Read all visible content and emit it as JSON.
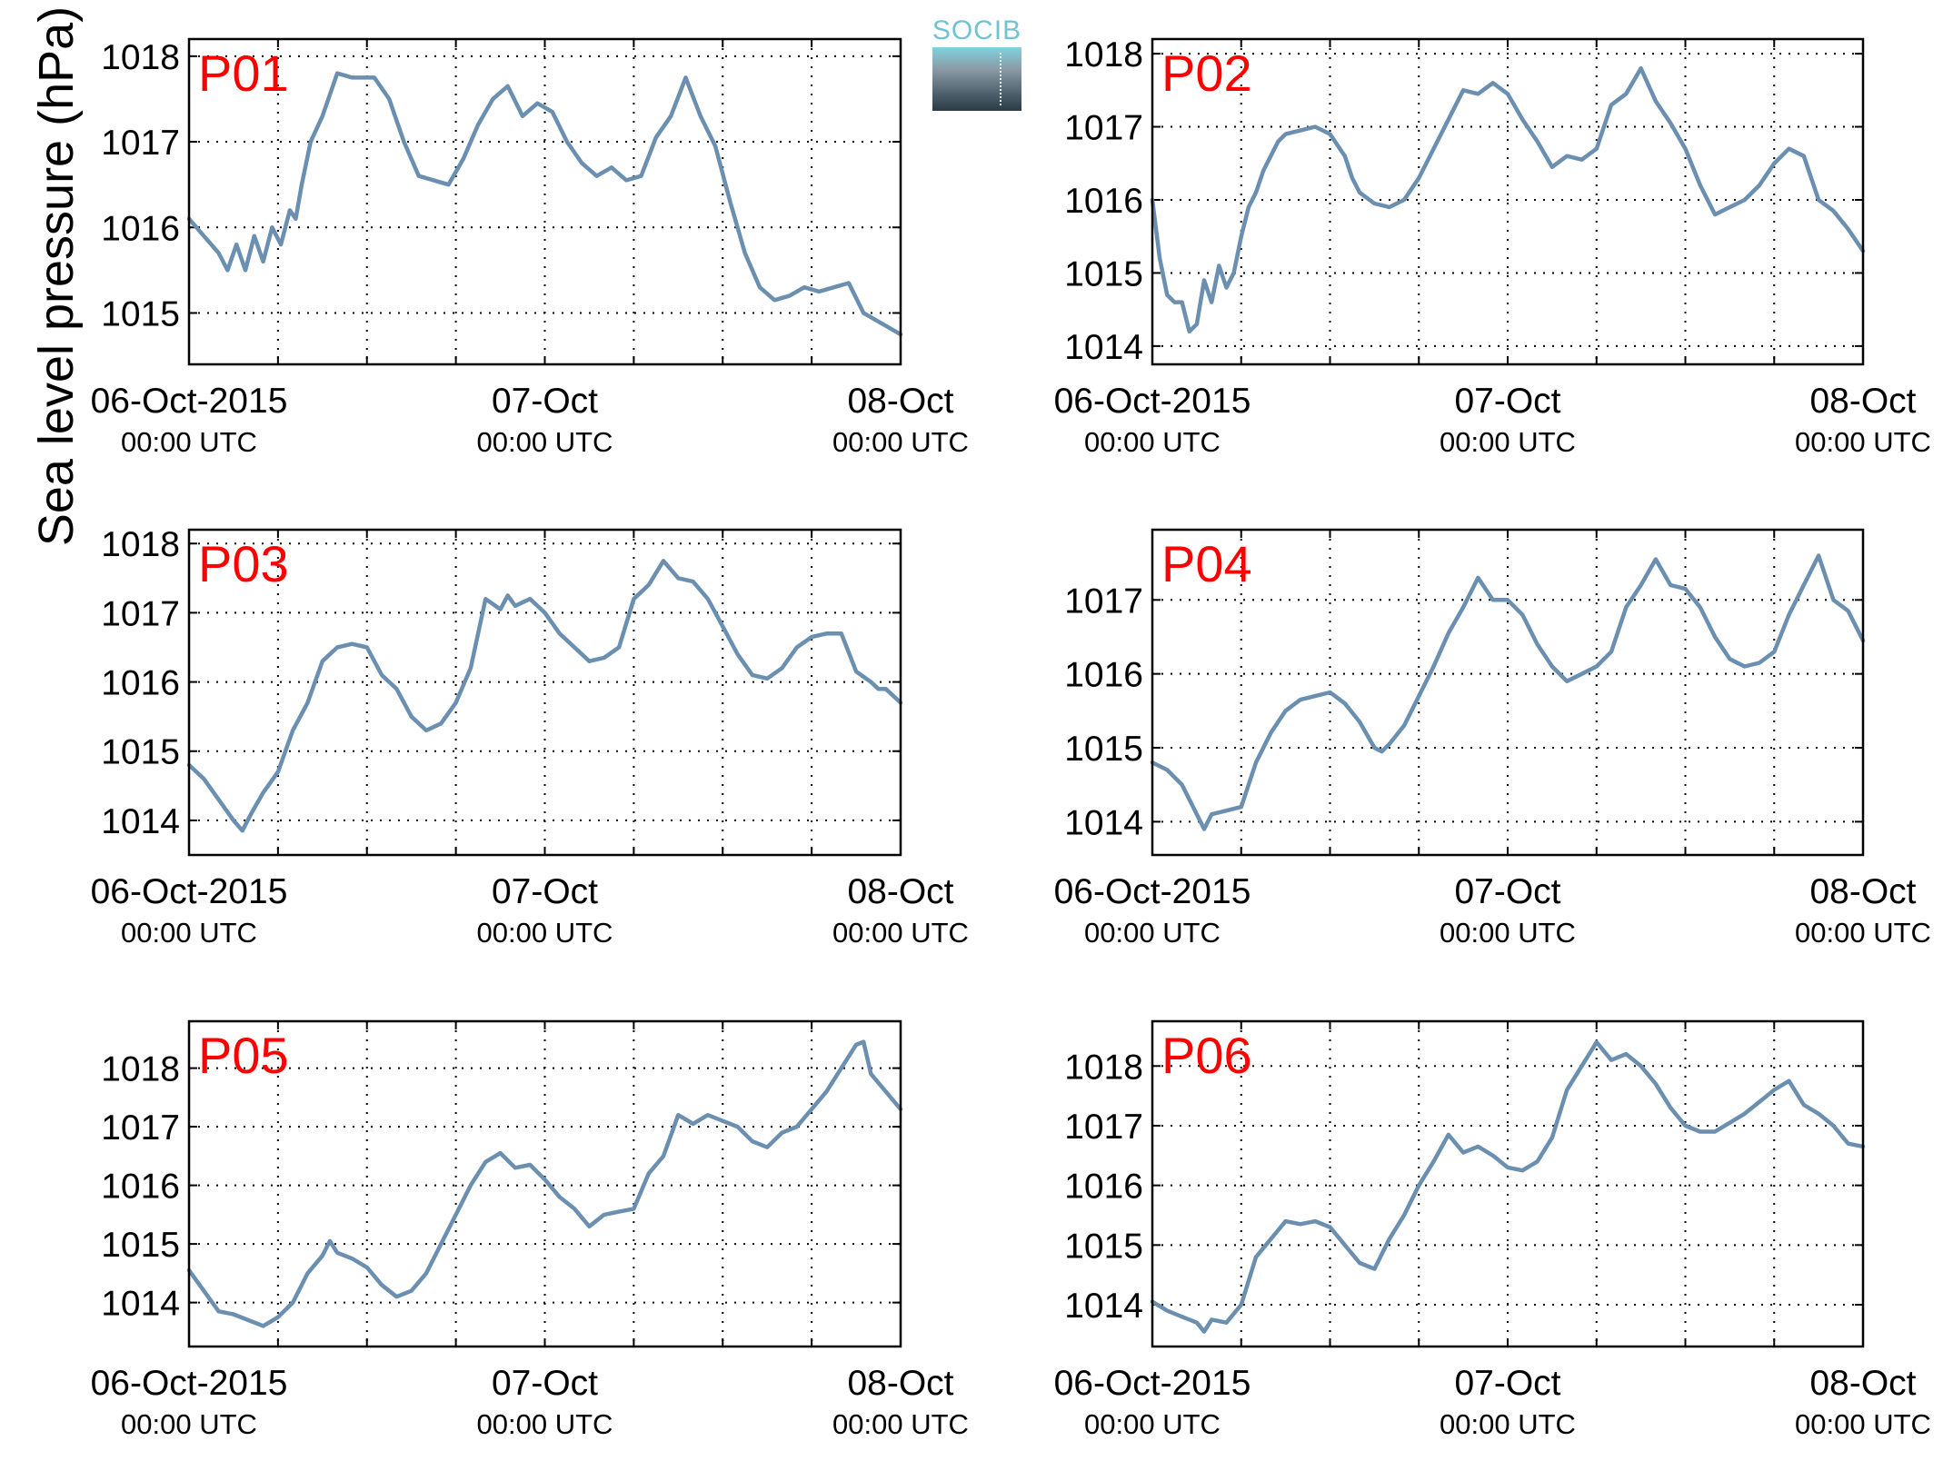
{
  "figure": {
    "ylabel": "Sea level pressure (hPa)",
    "logo_text": "SOCIB",
    "line_color": "#6a8fb0",
    "panel_label_color": "#ff0000"
  },
  "chart_data": [
    {
      "type": "line",
      "label": "P01",
      "ylim": [
        1014.4,
        1018.2
      ],
      "yticks": [
        1015,
        1016,
        1017,
        1018
      ],
      "xlim": [
        0,
        48
      ],
      "grid": true,
      "xticklabels": [
        {
          "date": "06-Oct-2015",
          "time": "00:00 UTC"
        },
        {
          "date": "07-Oct",
          "time": "00:00 UTC"
        },
        {
          "date": "08-Oct",
          "time": "00:00 UTC"
        }
      ],
      "series": [
        {
          "x": [
            0,
            1,
            2,
            2.6,
            3.2,
            3.8,
            4.4,
            5,
            5.6,
            6.2,
            6.8,
            7.2,
            7.6,
            8.2,
            9,
            10,
            11,
            12.5,
            13.5,
            14.5,
            15.5,
            16.5,
            17.5,
            18.5,
            19.5,
            20.5,
            21.5,
            22.5,
            23.5,
            24.5,
            25.5,
            26.5,
            27.5,
            28.5,
            29.5,
            30.5,
            31.5,
            32.5,
            33.5,
            34.5,
            35.5,
            36.5,
            37.5,
            38.5,
            39.5,
            40.5,
            41.5,
            42.5,
            43.5,
            44.5,
            45.5,
            46,
            46.5,
            47,
            47.5,
            48
          ],
          "y": [
            1016.1,
            1015.9,
            1015.7,
            1015.5,
            1015.8,
            1015.5,
            1015.9,
            1015.6,
            1016.0,
            1015.8,
            1016.2,
            1016.1,
            1016.5,
            1017.0,
            1017.3,
            1017.8,
            1017.75,
            1017.75,
            1017.5,
            1017.0,
            1016.6,
            1016.55,
            1016.5,
            1016.8,
            1017.2,
            1017.5,
            1017.65,
            1017.3,
            1017.45,
            1017.35,
            1017.0,
            1016.75,
            1016.6,
            1016.7,
            1016.55,
            1016.6,
            1017.05,
            1017.3,
            1017.75,
            1017.3,
            1016.95,
            1016.3,
            1015.7,
            1015.3,
            1015.15,
            1015.2,
            1015.3,
            1015.25,
            1015.3,
            1015.35,
            1015.0,
            1014.95,
            1014.9,
            1014.85,
            1014.8,
            1014.75
          ]
        }
      ]
    },
    {
      "type": "line",
      "label": "P02",
      "ylim": [
        1013.75,
        1018.2
      ],
      "yticks": [
        1014,
        1015,
        1016,
        1017,
        1018
      ],
      "xlim": [
        0,
        48
      ],
      "grid": true,
      "xticklabels": [
        {
          "date": "06-Oct-2015",
          "time": "00:00 UTC"
        },
        {
          "date": "07-Oct",
          "time": "00:00 UTC"
        },
        {
          "date": "08-Oct",
          "time": "00:00 UTC"
        }
      ],
      "series": [
        {
          "x": [
            0,
            0.5,
            1,
            1.5,
            2,
            2.5,
            3,
            3.5,
            4,
            4.5,
            5,
            5.5,
            6,
            6.5,
            7,
            7.5,
            8,
            8.5,
            9,
            10,
            11,
            12,
            13,
            13.5,
            14,
            15,
            16,
            17,
            18,
            19,
            20,
            21,
            22,
            23,
            24,
            25,
            26,
            27,
            28,
            29,
            30,
            31,
            32,
            33,
            34,
            35,
            36,
            37,
            38,
            39,
            40,
            41,
            42,
            43,
            44,
            45,
            46,
            47,
            48
          ],
          "y": [
            1016.0,
            1015.2,
            1014.7,
            1014.6,
            1014.6,
            1014.2,
            1014.3,
            1014.9,
            1014.6,
            1015.1,
            1014.8,
            1015.0,
            1015.5,
            1015.9,
            1016.1,
            1016.4,
            1016.6,
            1016.8,
            1016.9,
            1016.95,
            1017.0,
            1016.9,
            1016.6,
            1016.3,
            1016.1,
            1015.95,
            1015.9,
            1016.0,
            1016.3,
            1016.7,
            1017.1,
            1017.5,
            1017.45,
            1017.6,
            1017.45,
            1017.1,
            1016.8,
            1016.45,
            1016.6,
            1016.55,
            1016.7,
            1017.3,
            1017.45,
            1017.8,
            1017.35,
            1017.05,
            1016.7,
            1016.2,
            1015.8,
            1015.9,
            1016.0,
            1016.2,
            1016.5,
            1016.7,
            1016.6,
            1016.0,
            1015.85,
            1015.6,
            1015.3
          ]
        }
      ]
    },
    {
      "type": "line",
      "label": "P03",
      "ylim": [
        1013.5,
        1018.2
      ],
      "yticks": [
        1014,
        1015,
        1016,
        1017,
        1018
      ],
      "xlim": [
        0,
        48
      ],
      "grid": true,
      "xticklabels": [
        {
          "date": "06-Oct-2015",
          "time": "00:00 UTC"
        },
        {
          "date": "07-Oct",
          "time": "00:00 UTC"
        },
        {
          "date": "08-Oct",
          "time": "00:00 UTC"
        }
      ],
      "series": [
        {
          "x": [
            0,
            1,
            2,
            3,
            3.6,
            4.2,
            5,
            6,
            7,
            8,
            9,
            10,
            11,
            12,
            13,
            14,
            15,
            16,
            17,
            18,
            19,
            20,
            21,
            21.5,
            22,
            23,
            24,
            25,
            26,
            27,
            28,
            29,
            30,
            31,
            32,
            33,
            34,
            35,
            36,
            37,
            38,
            39,
            40,
            41,
            42,
            43,
            44,
            45,
            46,
            46.5,
            47,
            48
          ],
          "y": [
            1014.8,
            1014.6,
            1014.3,
            1014.0,
            1013.85,
            1014.1,
            1014.4,
            1014.7,
            1015.3,
            1015.7,
            1016.3,
            1016.5,
            1016.55,
            1016.5,
            1016.1,
            1015.9,
            1015.5,
            1015.3,
            1015.4,
            1015.7,
            1016.2,
            1017.2,
            1017.05,
            1017.25,
            1017.1,
            1017.2,
            1017.0,
            1016.7,
            1016.5,
            1016.3,
            1016.35,
            1016.5,
            1017.2,
            1017.4,
            1017.75,
            1017.5,
            1017.45,
            1017.2,
            1016.8,
            1016.4,
            1016.1,
            1016.05,
            1016.2,
            1016.5,
            1016.65,
            1016.7,
            1016.7,
            1016.15,
            1016.0,
            1015.9,
            1015.9,
            1015.7
          ]
        }
      ]
    },
    {
      "type": "line",
      "label": "P04",
      "ylim": [
        1013.55,
        1017.95
      ],
      "yticks": [
        1014,
        1015,
        1016,
        1017
      ],
      "xlim": [
        0,
        48
      ],
      "grid": true,
      "xticklabels": [
        {
          "date": "06-Oct-2015",
          "time": "00:00 UTC"
        },
        {
          "date": "07-Oct",
          "time": "00:00 UTC"
        },
        {
          "date": "08-Oct",
          "time": "00:00 UTC"
        }
      ],
      "series": [
        {
          "x": [
            0,
            1,
            2,
            3,
            3.5,
            4,
            5,
            6,
            7,
            8,
            9,
            10,
            11,
            12,
            13,
            14,
            15,
            15.5,
            16,
            17,
            18,
            19,
            20,
            21,
            22,
            23,
            24,
            25,
            26,
            27,
            28,
            29,
            30,
            31,
            32,
            33,
            34,
            35,
            36,
            37,
            38,
            39,
            40,
            41,
            42,
            43,
            44,
            45,
            46,
            47,
            48
          ],
          "y": [
            1014.8,
            1014.7,
            1014.5,
            1014.1,
            1013.9,
            1014.1,
            1014.15,
            1014.2,
            1014.8,
            1015.2,
            1015.5,
            1015.65,
            1015.7,
            1015.75,
            1015.6,
            1015.35,
            1015.0,
            1014.95,
            1015.05,
            1015.3,
            1015.7,
            1016.1,
            1016.55,
            1016.9,
            1017.3,
            1017.0,
            1017.0,
            1016.8,
            1016.4,
            1016.1,
            1015.9,
            1016.0,
            1016.1,
            1016.3,
            1016.9,
            1017.2,
            1017.55,
            1017.2,
            1017.15,
            1016.9,
            1016.5,
            1016.2,
            1016.1,
            1016.15,
            1016.3,
            1016.8,
            1017.2,
            1017.6,
            1017.0,
            1016.85,
            1016.45
          ]
        }
      ]
    },
    {
      "type": "line",
      "label": "P05",
      "ylim": [
        1013.25,
        1018.8
      ],
      "yticks": [
        1014,
        1015,
        1016,
        1017,
        1018
      ],
      "xlim": [
        0,
        48
      ],
      "grid": true,
      "xticklabels": [
        {
          "date": "06-Oct-2015",
          "time": "00:00 UTC"
        },
        {
          "date": "07-Oct",
          "time": "00:00 UTC"
        },
        {
          "date": "08-Oct",
          "time": "00:00 UTC"
        }
      ],
      "series": [
        {
          "x": [
            0,
            1,
            2,
            3,
            4,
            4.5,
            5,
            6,
            7,
            8,
            9,
            9.5,
            10,
            11,
            12,
            13,
            14,
            15,
            16,
            17,
            18,
            19,
            20,
            21,
            22,
            23,
            24,
            25,
            26,
            27,
            28,
            29,
            30,
            31,
            32,
            33,
            34,
            35,
            36,
            37,
            38,
            39,
            40,
            41,
            42,
            43,
            44,
            45,
            45.5,
            46,
            47,
            48
          ],
          "y": [
            1014.55,
            1014.2,
            1013.85,
            1013.8,
            1013.7,
            1013.65,
            1013.6,
            1013.75,
            1014.0,
            1014.5,
            1014.8,
            1015.05,
            1014.85,
            1014.75,
            1014.6,
            1014.3,
            1014.1,
            1014.2,
            1014.5,
            1015.0,
            1015.5,
            1016.0,
            1016.4,
            1016.55,
            1016.3,
            1016.35,
            1016.1,
            1015.8,
            1015.6,
            1015.3,
            1015.5,
            1015.55,
            1015.6,
            1016.2,
            1016.5,
            1017.2,
            1017.05,
            1017.2,
            1017.1,
            1017.0,
            1016.75,
            1016.65,
            1016.9,
            1017.0,
            1017.3,
            1017.6,
            1018.0,
            1018.4,
            1018.45,
            1017.9,
            1017.6,
            1017.3
          ]
        }
      ]
    },
    {
      "type": "line",
      "label": "P06",
      "ylim": [
        1013.3,
        1018.75
      ],
      "yticks": [
        1014,
        1015,
        1016,
        1017,
        1018
      ],
      "xlim": [
        0,
        48
      ],
      "grid": true,
      "xticklabels": [
        {
          "date": "06-Oct-2015",
          "time": "00:00 UTC"
        },
        {
          "date": "07-Oct",
          "time": "00:00 UTC"
        },
        {
          "date": "08-Oct",
          "time": "00:00 UTC"
        }
      ],
      "series": [
        {
          "x": [
            0,
            1,
            2,
            3,
            3.5,
            4,
            5,
            6,
            7,
            8,
            9,
            10,
            11,
            12,
            13,
            14,
            15,
            16,
            17,
            18,
            19,
            20,
            21,
            22,
            23,
            24,
            25,
            26,
            27,
            28,
            29,
            30,
            31,
            32,
            33,
            34,
            35,
            36,
            37,
            38,
            39,
            40,
            41,
            42,
            43,
            44,
            45,
            45.5,
            46,
            47,
            48
          ],
          "y": [
            1014.05,
            1013.9,
            1013.8,
            1013.7,
            1013.55,
            1013.75,
            1013.7,
            1014.0,
            1014.8,
            1015.1,
            1015.4,
            1015.35,
            1015.4,
            1015.3,
            1015.0,
            1014.7,
            1014.6,
            1015.1,
            1015.5,
            1016.0,
            1016.4,
            1016.85,
            1016.55,
            1016.65,
            1016.5,
            1016.3,
            1016.25,
            1016.4,
            1016.8,
            1017.6,
            1018.0,
            1018.4,
            1018.1,
            1018.2,
            1018.0,
            1017.7,
            1017.3,
            1017.0,
            1016.9,
            1016.9,
            1017.05,
            1017.2,
            1017.4,
            1017.6,
            1017.75,
            1017.35,
            1017.2,
            1017.1,
            1017.0,
            1016.7,
            1016.65
          ]
        }
      ]
    }
  ]
}
